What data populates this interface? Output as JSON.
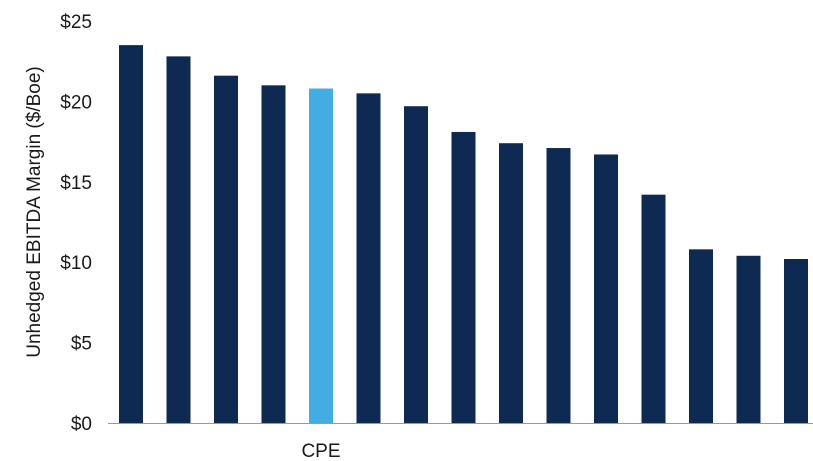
{
  "chart_data": {
    "type": "bar",
    "categories": [
      "",
      "",
      "",
      "",
      "CPE",
      "",
      "",
      "",
      "",
      "",
      "",
      "",
      "",
      "",
      ""
    ],
    "values": [
      23.5,
      22.8,
      21.6,
      21.0,
      20.8,
      20.5,
      19.7,
      18.1,
      17.4,
      17.1,
      16.7,
      14.2,
      10.8,
      10.4,
      10.2
    ],
    "highlight_index": 4,
    "title": "",
    "xlabel": "",
    "ylabel": "Unhedged  EBITDA  Margin  ($/Boe)",
    "ylim": [
      0,
      25
    ],
    "yticks": [
      0,
      5,
      10,
      15,
      20,
      25
    ],
    "ytick_labels": [
      "$0",
      "$5",
      "$10",
      "$15",
      "$20",
      "$25"
    ],
    "grid": false,
    "legend": "none",
    "colors": {
      "bar": "#0e2a52",
      "highlight": "#41ade2",
      "axis": "#999999"
    }
  }
}
